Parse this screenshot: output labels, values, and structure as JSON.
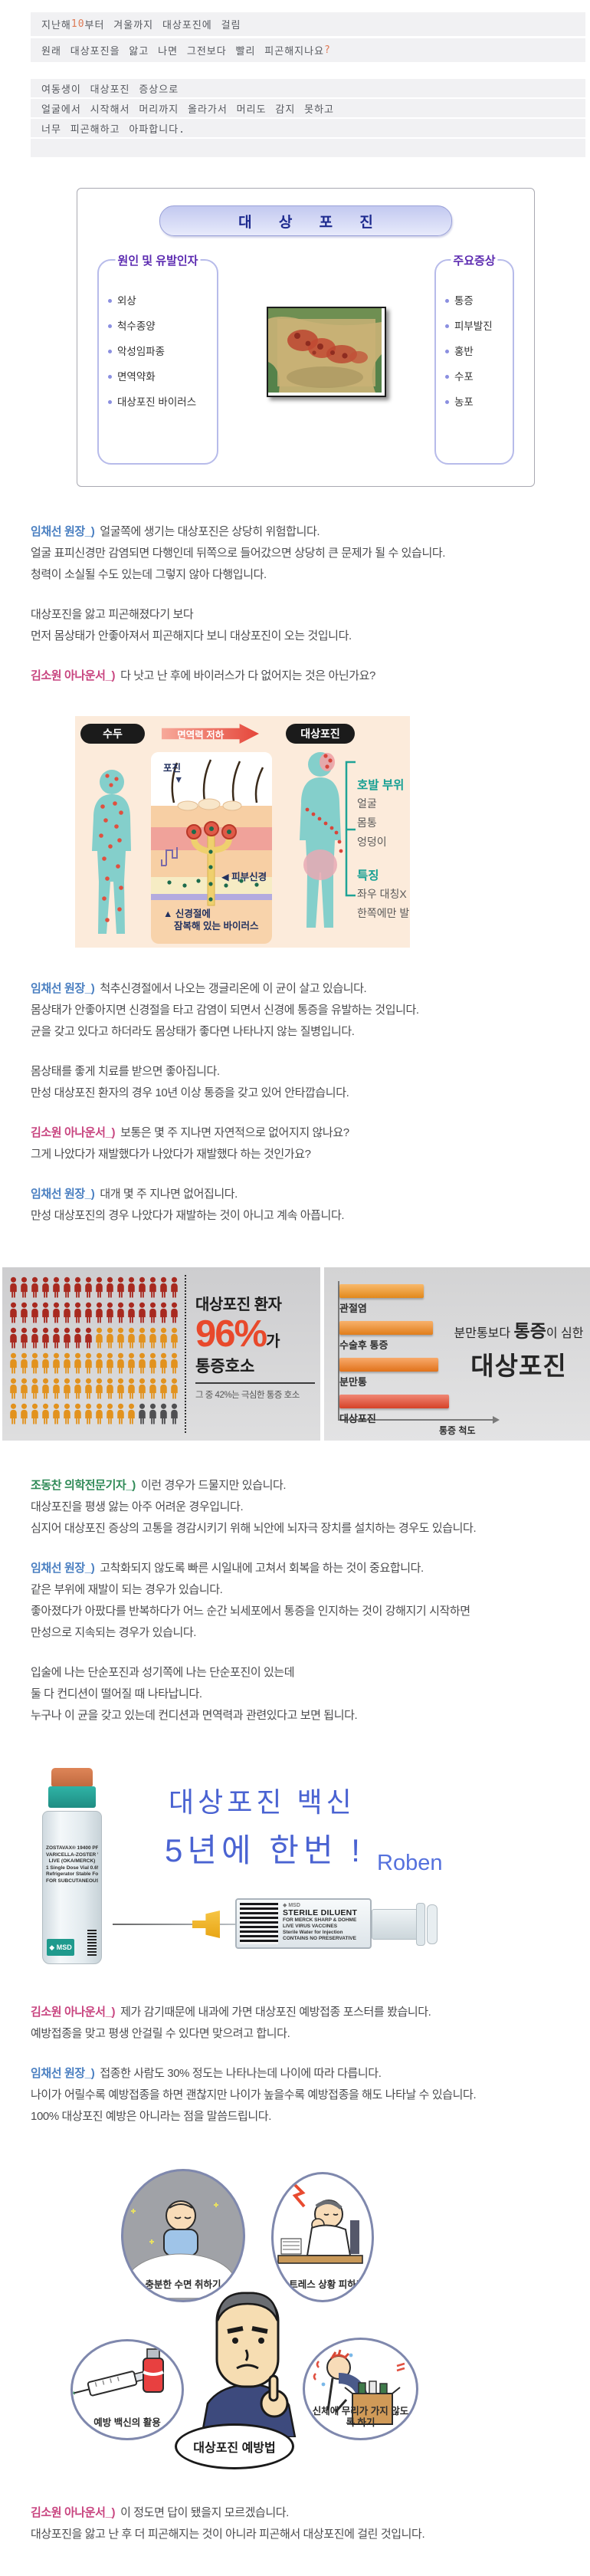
{
  "colors": {
    "speaker_doctor": "#4a7fc1",
    "speaker_anchor": "#c8447f",
    "speaker_reporter": "#2f8a57",
    "quote_highlight": "#dd7a55",
    "headline_blue": "#4a63d2",
    "pictogram_pct": "#e8492b"
  },
  "quote": {
    "line1": {
      "pre": "지난해 ",
      "num": "10",
      "post": "부터 겨울까지 대상포진에 걸림"
    },
    "line2": {
      "text": "원래 대상포진을 앓고 나면 그전보다 빨리 피곤해지나요",
      "mark": "?"
    },
    "block2": [
      "여동생이 대상포진 증상으로",
      "얼굴에서 시작해서 머리까지 올라가서 머리도 감지 못하고",
      "너무 피곤해하고 아파합니다."
    ]
  },
  "diagram1": {
    "title": "대 상 포 진",
    "cause_title": "원인 및 유발인자",
    "causes": [
      "외상",
      "척수종양",
      "악성임파종",
      "면역약화",
      "대상포진 바이러스"
    ],
    "symptom_title": "주요증상",
    "symptoms": [
      "통증",
      "피부발진",
      "홍반",
      "수포",
      "농포"
    ]
  },
  "infographic": {
    "left_pill": "수두",
    "arrow": "면역력 저하",
    "right_pill": "대상포진",
    "pojin": "포진",
    "pojin_arrow": "▼",
    "skin_nerve": "◀ 피부신경",
    "latent1": "▲ 신경절에",
    "latent2": "잠복해 있는 바이러스",
    "site_title": "호발 부위",
    "sites": [
      "얼굴",
      "몸통",
      "엉덩이"
    ],
    "feature_title": "특징",
    "features": [
      "좌우 대칭X",
      "한쪽에만 발생"
    ]
  },
  "chart_data": [
    {
      "type": "pictogram",
      "title": "대상포진 환자 96%가 통증호소",
      "subtitle": "그 중 42%는 극심한 통증 호소",
      "percent_pain": 96,
      "percent_severe_pain": 42,
      "text": {
        "l1": "대상포진 환자",
        "pct": "96%",
        "suffix": "가",
        "l2": "통증호소",
        "sub": "그 중 42%는 극심한 통증 호소"
      },
      "icon_grid": {
        "cols": 16,
        "segments": [
          {
            "label": "extreme pain",
            "count": 40,
            "color": "#a8291f"
          },
          {
            "label": "pain",
            "count": 52,
            "color": "#e2921e"
          },
          {
            "label": "no pain",
            "count": 4,
            "color": "#4f4f52"
          }
        ]
      }
    },
    {
      "type": "bar",
      "orientation": "horizontal",
      "title": "분만통보다 통증이 심한 대상포진",
      "title_parts": {
        "small_pre": "분만통보다 ",
        "big": "통증",
        "small_post": "이 심한",
        "main": "대상포진"
      },
      "categories": [
        "관절염",
        "수술후 통증",
        "분만통",
        "대상포진"
      ],
      "values": [
        77,
        85,
        90,
        100
      ],
      "bar_colors": [
        "#f5941d",
        "#f4881d",
        "#f47c1d",
        "#e8472b"
      ],
      "xlabel": "통증 척도",
      "note": "relative pain scale, no numeric ticks shown"
    }
  ],
  "vaccine": {
    "headline1": "대상포진 백신",
    "headline2": "5년에 한번 !",
    "watermark": "Roben",
    "vial_brand": "◆ MSD",
    "vial_label": [
      "ZOSTAVAX® 19400 PFU/0.65 mL",
      "VARICELLA-ZOSTER VIRUS VACCINE",
      "LIVE (OKA/MERCK)",
      "1 Single Dose Vial 0.65 mL",
      "Refrigerator Stable Formulation",
      "FOR SUBCUTANEOUS INJECTION"
    ],
    "syringe_brand": "◆ MSD",
    "syringe_title": "STERILE DILUENT",
    "syringe_label": [
      "FOR MERCK SHARP & DOHME",
      "LIVE VIRUS VACCINES",
      "Sterile Water for Injection",
      "CONTAINS NO PRESERVATIVE"
    ]
  },
  "cartoon": {
    "bubble": "대상포진 예방법",
    "tips": [
      "충분한 수면 취하기",
      "스트레스 상황 피하기",
      "예방 백신의 활용",
      "신체에 무리가 가지 않도록 하기"
    ]
  },
  "dialogs": {
    "d1": [
      {
        "s": "임채선 원장_)",
        "c": "doctor",
        "t": "얼굴쪽에 생기는 대상포진은 상당히 위험합니다."
      },
      {
        "t": "얼굴 표피신경만 감염되면 다행인데 뒤쪽으로 들어갔으면 상당히 큰 문제가 될 수 있습니다."
      },
      {
        "t": "청력이 소실될 수도 있는데 그렇지 않아 다행입니다."
      },
      {
        "cls": "gap"
      },
      {
        "t": "대상포진을 앓고 피곤해졌다기 보다"
      },
      {
        "t": "먼저 몸상태가 안좋아져서 피곤해지다 보니 대상포진이 오는 것입니다."
      },
      {
        "cls": "gap"
      },
      {
        "s": "김소원 아나운서_)",
        "c": "anchor",
        "t": "다 낫고 난 후에 바이러스가 다 없어지는 것은 아닌가요?"
      }
    ],
    "d2": [
      {
        "s": "임채선 원장_)",
        "c": "doctor",
        "t": "척추신경절에서 나오는 갱글리온에 이 균이 살고 있습니다."
      },
      {
        "t": "몸상태가 안좋아지면 신경절을 타고 감염이 되면서 신경에 통증을 유발하는 것입니다."
      },
      {
        "t": "균을 갖고 있다고 하더라도 몸상태가 좋다면 나타나지 않는 질병입니다."
      },
      {
        "cls": "gap"
      },
      {
        "t": "몸상태를 좋게 치료를 받으면 좋아집니다."
      },
      {
        "t": "만성 대상포진 환자의 경우 10년 이상 통증을 갖고 있어 안타깝습니다."
      },
      {
        "cls": "gap"
      },
      {
        "s": "김소원 아나운서_)",
        "c": "anchor",
        "t": "보통은 몇 주 지나면 자연적으로 없어지지 않나요?"
      },
      {
        "t": "그게 나았다가 재발했다가 나았다가 재발했다 하는 것인가요?"
      },
      {
        "cls": "gap"
      },
      {
        "s": "임채선 원장_)",
        "c": "doctor",
        "t": "대개 몇 주 지나면 없어집니다."
      },
      {
        "t": "만성 대상포진의 경우 나았다가 재발하는 것이 아니고 계속 아픕니다."
      }
    ],
    "d3": [
      {
        "s": "조동찬 의학전문기자_)",
        "c": "reporter",
        "t": "이런 경우가 드물지만 있습니다."
      },
      {
        "t": "대상포진을 평생 앓는 아주 어려운 경우입니다."
      },
      {
        "t": "심지어 대상포진 증상의 고통을 경감시키기 위해 뇌안에 뇌자극 장치를 설치하는 경우도 있습니다."
      },
      {
        "cls": "gap"
      },
      {
        "s": "임채선 원장_)",
        "c": "doctor",
        "t": "고착화되지 않도록 빠른 시일내에 고쳐서 회복을 하는 것이 중요합니다."
      },
      {
        "t": "같은 부위에 재발이 되는 경우가 있습니다."
      },
      {
        "t": "좋아졌다가 아팠다를 반복하다가 어느 순간 뇌세포에서 통증을 인지하는 것이 강해지기 시작하면"
      },
      {
        "t": "만성으로 지속되는 경우가 있습니다."
      },
      {
        "cls": "gap"
      },
      {
        "t": "입술에 나는 단순포진과 성기쪽에 나는 단순포진이 있는데"
      },
      {
        "t": "둘 다 컨디션이 떨어질 때 나타납니다."
      },
      {
        "t": "누구나 이 균을 갖고 있는데 컨디션과 면역력과 관련있다고 보면 됩니다."
      }
    ],
    "d4": [
      {
        "s": "김소원 아나운서_)",
        "c": "anchor",
        "t": "제가 감기때문에 내과에 가면 대상포진 예방접종 포스터를 봤습니다."
      },
      {
        "t": "예방접종을 맞고 평생 안걸릴 수 있다면 맞으려고 합니다."
      },
      {
        "cls": "gap"
      },
      {
        "s": "임채선 원장_)",
        "c": "doctor",
        "t": "접종한 사람도 30% 정도는 나타나는데 나이에 따라 다릅니다."
      },
      {
        "t": "나이가 어릴수록 예방접종을 하면 괜찮지만 나이가 높을수록 예방접종을 해도 나타날 수 있습니다."
      },
      {
        "t": "100% 대상포진 예방은 아니라는 점을 말씀드립니다."
      }
    ],
    "d5": [
      {
        "s": "김소원 아나운서_)",
        "c": "anchor",
        "t": "이 정도면 답이 됐을지 모르겠습니다."
      },
      {
        "t": "대상포진을 앓고 난 후 더 피곤해지는 것이 아니라 피곤해서 대상포진에 걸린 것입니다."
      }
    ]
  }
}
